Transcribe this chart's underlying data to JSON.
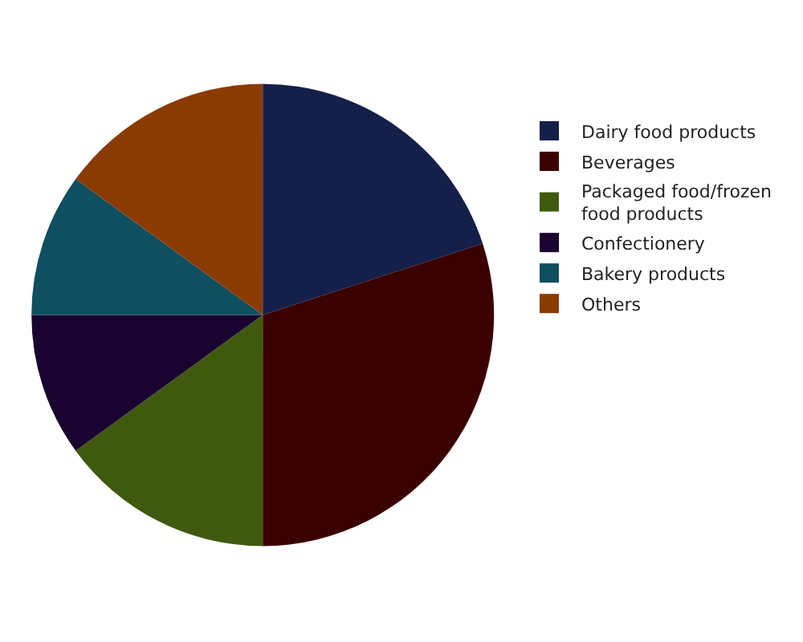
{
  "chart_data": {
    "type": "pie",
    "categories": [
      "Dairy food products",
      "Beverages",
      "Packaged food/frozen food products",
      "Confectionery",
      "Bakery products",
      "Others"
    ],
    "values": [
      20,
      30,
      15,
      10,
      10,
      15
    ],
    "colors": [
      "#14204a",
      "#3b0000",
      "#3f5a0f",
      "#1a0330",
      "#0f4f5f",
      "#8a3b00"
    ],
    "legend": "right"
  }
}
